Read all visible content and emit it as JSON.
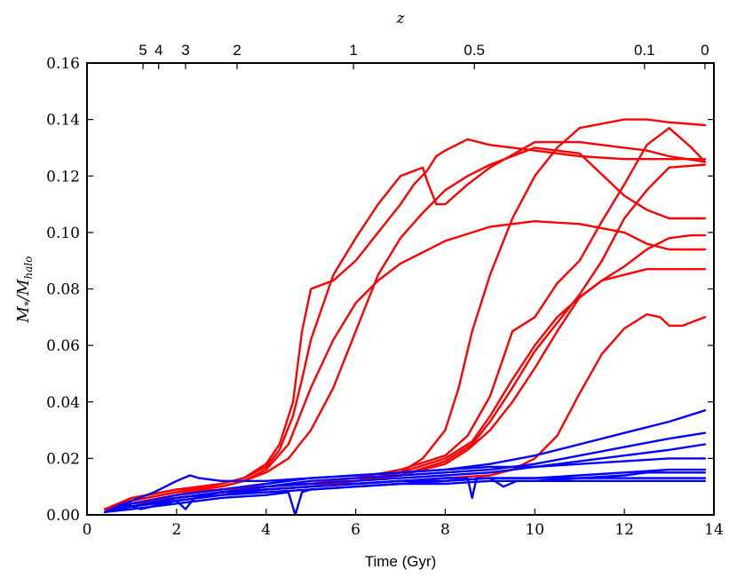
{
  "chart_data": {
    "type": "line",
    "xlabel": "Time (Gyr)",
    "ylabel_main": "M",
    "ylabel_sub": "*",
    "ylabel_div": "/M",
    "ylabel_sub2": "halo",
    "top_axis_label": "z",
    "xlim": [
      0,
      14
    ],
    "ylim": [
      0,
      0.16
    ],
    "xticks": [
      0,
      2,
      4,
      6,
      8,
      10,
      12,
      14
    ],
    "xtick_labels": [
      "0",
      "2",
      "4",
      "6",
      "8",
      "10",
      "12",
      "14"
    ],
    "yticks": [
      0,
      0.02,
      0.04,
      0.06,
      0.08,
      0.1,
      0.12,
      0.14,
      0.16
    ],
    "ytick_labels": [
      "0.00",
      "0.02",
      "0.04",
      "0.06",
      "0.08",
      "0.10",
      "0.12",
      "0.14",
      "0.16"
    ],
    "top_ticks": [
      {
        "time": 1.25,
        "label": "5"
      },
      {
        "time": 1.6,
        "label": "4"
      },
      {
        "time": 2.2,
        "label": "3"
      },
      {
        "time": 3.35,
        "label": "2"
      },
      {
        "time": 5.95,
        "label": "1"
      },
      {
        "time": 8.65,
        "label": "0.5"
      },
      {
        "time": 12.45,
        "label": "0.1"
      },
      {
        "time": 13.8,
        "label": "0"
      }
    ],
    "colors": {
      "red": "#ff0000",
      "blue": "#0000ff"
    },
    "series": [
      {
        "name": "red-1",
        "color": "red",
        "x": [
          0.4,
          1,
          2,
          3,
          3.5,
          4,
          4.3,
          4.6,
          4.8,
          5,
          5.5,
          6,
          6.5,
          7,
          7.3,
          7.6,
          7.8,
          8,
          8.5,
          9,
          9.5,
          10,
          11,
          12,
          13,
          13.8
        ],
        "y": [
          0.002,
          0.005,
          0.008,
          0.011,
          0.013,
          0.018,
          0.025,
          0.04,
          0.065,
          0.08,
          0.083,
          0.09,
          0.1,
          0.11,
          0.117,
          0.122,
          0.127,
          0.129,
          0.133,
          0.131,
          0.13,
          0.129,
          0.127,
          0.126,
          0.126,
          0.126
        ]
      },
      {
        "name": "red-2",
        "color": "red",
        "x": [
          0.4,
          1,
          2,
          3,
          3.5,
          4,
          4.3,
          4.6,
          4.8,
          5,
          5.5,
          6,
          6.5,
          7,
          7.5,
          7.6,
          7.8,
          8,
          8.5,
          9,
          10,
          11,
          12,
          12.5,
          13,
          13.8
        ],
        "y": [
          0.002,
          0.006,
          0.009,
          0.011,
          0.013,
          0.017,
          0.023,
          0.035,
          0.048,
          0.062,
          0.085,
          0.098,
          0.11,
          0.12,
          0.123,
          0.118,
          0.11,
          0.11,
          0.117,
          0.123,
          0.132,
          0.132,
          0.13,
          0.129,
          0.127,
          0.125
        ]
      },
      {
        "name": "red-3",
        "color": "red",
        "x": [
          0.4,
          1,
          2,
          3,
          3.5,
          4,
          4.5,
          5,
          5.5,
          6,
          6.5,
          7,
          8,
          9,
          10,
          11,
          12,
          12.5,
          13,
          13.8
        ],
        "y": [
          0.002,
          0.005,
          0.008,
          0.01,
          0.012,
          0.016,
          0.025,
          0.045,
          0.062,
          0.075,
          0.083,
          0.089,
          0.097,
          0.102,
          0.104,
          0.103,
          0.1,
          0.096,
          0.094,
          0.094
        ]
      },
      {
        "name": "red-4",
        "color": "red",
        "x": [
          0.4,
          1,
          2,
          3,
          3.5,
          4,
          4.5,
          5,
          5.5,
          6,
          6.5,
          7,
          7.5,
          8,
          8.5,
          9,
          10,
          11,
          12,
          12.5,
          13,
          13.8
        ],
        "y": [
          0.002,
          0.006,
          0.009,
          0.01,
          0.012,
          0.015,
          0.02,
          0.03,
          0.045,
          0.065,
          0.085,
          0.098,
          0.107,
          0.115,
          0.12,
          0.124,
          0.13,
          0.128,
          0.113,
          0.108,
          0.105,
          0.105
        ]
      },
      {
        "name": "red-5",
        "color": "red",
        "x": [
          0.4,
          1,
          2,
          3,
          4,
          5,
          6,
          7,
          7.5,
          8,
          8.3,
          8.6,
          9,
          9.5,
          10,
          10.5,
          11,
          12,
          12.5,
          13,
          13.8
        ],
        "y": [
          0.002,
          0.005,
          0.008,
          0.009,
          0.01,
          0.011,
          0.012,
          0.015,
          0.02,
          0.03,
          0.045,
          0.065,
          0.085,
          0.105,
          0.12,
          0.13,
          0.137,
          0.14,
          0.14,
          0.139,
          0.138
        ]
      },
      {
        "name": "red-6",
        "color": "red",
        "x": [
          0.4,
          1,
          2,
          3,
          4,
          5,
          6,
          7,
          8,
          8.5,
          9,
          9.5,
          10,
          10.5,
          11,
          11.5,
          12,
          12.5,
          13,
          13.5,
          13.8
        ],
        "y": [
          0.002,
          0.004,
          0.007,
          0.009,
          0.01,
          0.011,
          0.013,
          0.016,
          0.021,
          0.028,
          0.042,
          0.065,
          0.07,
          0.082,
          0.09,
          0.104,
          0.117,
          0.131,
          0.137,
          0.13,
          0.125
        ]
      },
      {
        "name": "red-7",
        "color": "red",
        "x": [
          0.4,
          1,
          2,
          3,
          4,
          5,
          6,
          7,
          8,
          8.6,
          9,
          9.5,
          10,
          10.5,
          11,
          11.5,
          12,
          12.5,
          13,
          13.8
        ],
        "y": [
          0.002,
          0.004,
          0.006,
          0.008,
          0.009,
          0.01,
          0.012,
          0.014,
          0.019,
          0.025,
          0.033,
          0.045,
          0.058,
          0.068,
          0.078,
          0.09,
          0.105,
          0.115,
          0.123,
          0.124
        ]
      },
      {
        "name": "red-8",
        "color": "red",
        "x": [
          0.4,
          1,
          2,
          3,
          4,
          5,
          6,
          7,
          8,
          8.5,
          9,
          9.5,
          10,
          10.5,
          11,
          11.5,
          12,
          12.5,
          13,
          13.8
        ],
        "y": [
          0.002,
          0.004,
          0.006,
          0.008,
          0.009,
          0.01,
          0.012,
          0.014,
          0.018,
          0.023,
          0.03,
          0.04,
          0.052,
          0.065,
          0.077,
          0.083,
          0.085,
          0.087,
          0.087,
          0.087
        ]
      },
      {
        "name": "red-9",
        "color": "red",
        "x": [
          0.4,
          1,
          2,
          3,
          4,
          5,
          6,
          7,
          8,
          8.6,
          9,
          9.5,
          10,
          10.5,
          11,
          11.5,
          12,
          12.5,
          13,
          13.5,
          13.8
        ],
        "y": [
          0.002,
          0.004,
          0.006,
          0.008,
          0.009,
          0.01,
          0.012,
          0.015,
          0.02,
          0.026,
          0.035,
          0.048,
          0.06,
          0.07,
          0.077,
          0.083,
          0.088,
          0.094,
          0.098,
          0.099,
          0.099
        ]
      },
      {
        "name": "red-10",
        "color": "red",
        "x": [
          0.4,
          1,
          2,
          3,
          4,
          5,
          6,
          7,
          8,
          9,
          9.5,
          10,
          10.5,
          11,
          11.5,
          12,
          12.5,
          12.8,
          13,
          13.3,
          13.8
        ],
        "y": [
          0.002,
          0.004,
          0.006,
          0.008,
          0.009,
          0.01,
          0.011,
          0.012,
          0.013,
          0.014,
          0.016,
          0.02,
          0.028,
          0.043,
          0.057,
          0.066,
          0.071,
          0.07,
          0.067,
          0.067,
          0.07
        ]
      },
      {
        "name": "blue-1",
        "color": "blue",
        "x": [
          0.4,
          1,
          2,
          3,
          4,
          5,
          6,
          7,
          8,
          9,
          10,
          11,
          12,
          13,
          13.8
        ],
        "y": [
          0.001,
          0.004,
          0.007,
          0.009,
          0.011,
          0.013,
          0.014,
          0.015,
          0.016,
          0.018,
          0.021,
          0.025,
          0.029,
          0.033,
          0.037
        ]
      },
      {
        "name": "blue-2",
        "color": "blue",
        "x": [
          0.4,
          1,
          2,
          3,
          4,
          5,
          6,
          7,
          8,
          9,
          10,
          11,
          12,
          13,
          13.8
        ],
        "y": [
          0.001,
          0.003,
          0.006,
          0.008,
          0.01,
          0.012,
          0.013,
          0.014,
          0.015,
          0.016,
          0.018,
          0.021,
          0.024,
          0.027,
          0.029
        ]
      },
      {
        "name": "blue-3",
        "color": "blue",
        "x": [
          0.4,
          1,
          2,
          3,
          4,
          5,
          6,
          7,
          8,
          9,
          10,
          11,
          12,
          13,
          13.8
        ],
        "y": [
          0.001,
          0.003,
          0.006,
          0.008,
          0.01,
          0.011,
          0.012,
          0.013,
          0.014,
          0.015,
          0.017,
          0.019,
          0.021,
          0.023,
          0.025
        ]
      },
      {
        "name": "blue-4",
        "color": "blue",
        "x": [
          0.4,
          1,
          1.5,
          2,
          2.3,
          2.5,
          3,
          4,
          5,
          6,
          7,
          8,
          9,
          10,
          11,
          12,
          13,
          13.8
        ],
        "y": [
          0.001,
          0.005,
          0.008,
          0.012,
          0.014,
          0.013,
          0.012,
          0.012,
          0.013,
          0.014,
          0.015,
          0.016,
          0.017,
          0.017,
          0.018,
          0.019,
          0.02,
          0.02
        ]
      },
      {
        "name": "blue-5",
        "color": "blue",
        "x": [
          0.4,
          1,
          2,
          3,
          4,
          4.5,
          4.65,
          4.8,
          5,
          6,
          7,
          8,
          9,
          10,
          11,
          12,
          13,
          13.8
        ],
        "y": [
          0.001,
          0.002,
          0.004,
          0.006,
          0.007,
          0.008,
          0,
          0.008,
          0.009,
          0.01,
          0.011,
          0.012,
          0.013,
          0.013,
          0.014,
          0.015,
          0.016,
          0.016
        ]
      },
      {
        "name": "blue-6",
        "color": "blue",
        "x": [
          0.4,
          1,
          2,
          3,
          4,
          5,
          6,
          7,
          8,
          8.5,
          8.6,
          8.7,
          9,
          9.3,
          9.6,
          10,
          11,
          12,
          12.5,
          13,
          13.8
        ],
        "y": [
          0.001,
          0.003,
          0.005,
          0.007,
          0.009,
          0.01,
          0.011,
          0.012,
          0.013,
          0.013,
          0.006,
          0.013,
          0.013,
          0.01,
          0.012,
          0.012,
          0.013,
          0.014,
          0.015,
          0.015,
          0.015
        ]
      },
      {
        "name": "blue-7",
        "color": "blue",
        "x": [
          0.4,
          0.8,
          1.2,
          2,
          2.2,
          2.4,
          3,
          4,
          5,
          6,
          7,
          8,
          9,
          10,
          11,
          12,
          13,
          13.8
        ],
        "y": [
          0.001,
          0.004,
          0.002,
          0.005,
          0.002,
          0.006,
          0.008,
          0.009,
          0.01,
          0.011,
          0.012,
          0.012,
          0.013,
          0.013,
          0.013,
          0.013,
          0.013,
          0.013
        ]
      },
      {
        "name": "blue-8",
        "color": "blue",
        "x": [
          0.4,
          1,
          2,
          3,
          4,
          5,
          6,
          7,
          8,
          9,
          10,
          11,
          12,
          13,
          13.8
        ],
        "y": [
          0.001,
          0.003,
          0.005,
          0.007,
          0.008,
          0.009,
          0.01,
          0.011,
          0.011,
          0.012,
          0.012,
          0.012,
          0.012,
          0.012,
          0.012
        ]
      }
    ]
  }
}
